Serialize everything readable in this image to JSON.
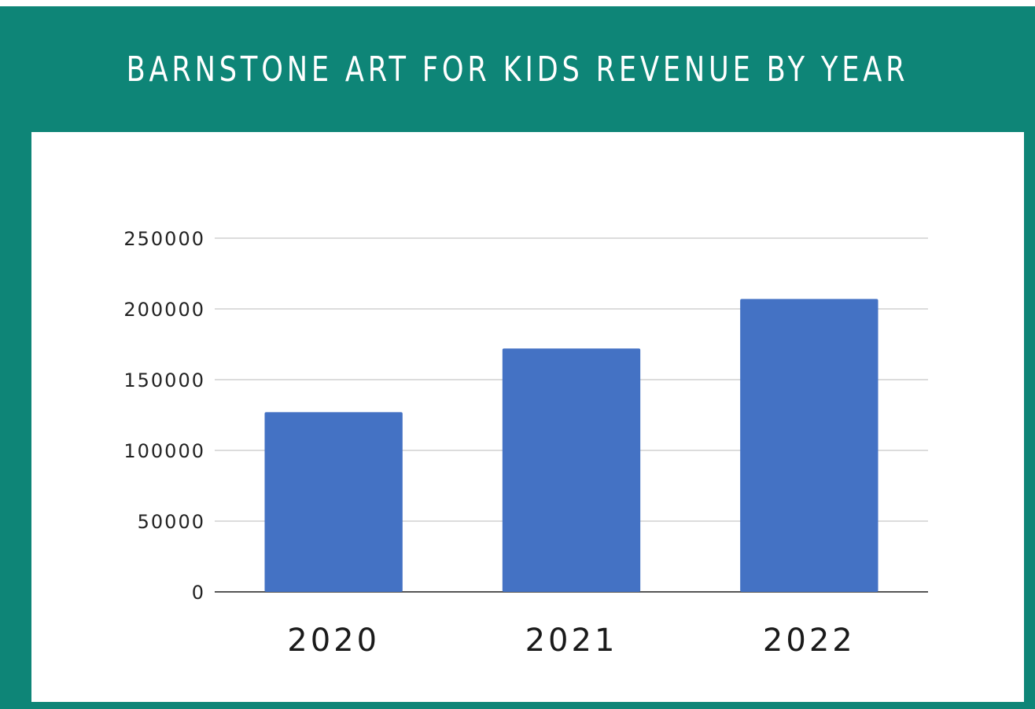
{
  "chart_data": {
    "type": "bar",
    "title": "BARNSTONE ART FOR KIDS REVENUE BY YEAR",
    "categories": [
      "2020",
      "2021",
      "2022"
    ],
    "values": [
      127000,
      172000,
      207000
    ],
    "xlabel": "",
    "ylabel": "",
    "ylim": [
      0,
      250000
    ],
    "yticks": [
      "0",
      "50000",
      "100000",
      "150000",
      "200000",
      "250000"
    ],
    "grid": true,
    "legend": "none",
    "bar_color": "#4472c4",
    "frame_color": "#0e8577"
  }
}
